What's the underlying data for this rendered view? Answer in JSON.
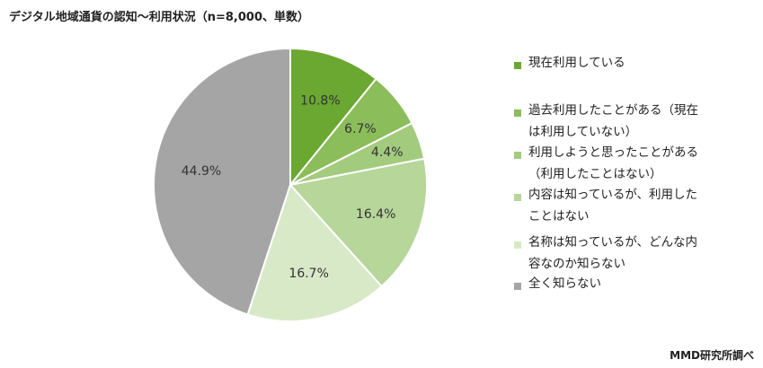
{
  "title": "デジタル地域通貨の認知～利用状況（n=8,000、単数）",
  "source": "MMD研究所調べ",
  "chart_data": {
    "type": "pie",
    "start_angle_deg": 0,
    "direction": "clockwise",
    "legend_position": "right",
    "slices": [
      {
        "label": "現在利用している",
        "value": 10.8,
        "display": "10.8%",
        "color": "#6aa832"
      },
      {
        "label": "過去利用したことがある（現在は利用していない）",
        "value": 6.7,
        "display": "6.7%",
        "color": "#8bbd5b"
      },
      {
        "label": "利用しようと思ったことがある（利用したことはない）",
        "value": 4.4,
        "display": "4.4%",
        "color": "#a3cb7e"
      },
      {
        "label": "内容は知っているが、利用したことはない",
        "value": 16.4,
        "display": "16.4%",
        "color": "#b6d69a"
      },
      {
        "label": "名称は知っているが、どんな内容なのか知らない",
        "value": 16.7,
        "display": "16.7%",
        "color": "#d8e9c8"
      },
      {
        "label": "全く知らない",
        "value": 44.9,
        "display": "44.9%",
        "color": "#a5a5a5"
      }
    ],
    "legend_lines": [
      "現在利用している",
      "過去利用したことがある（現在\nは利用していない）",
      "利用しようと思ったことがある\n（利用したことはない）",
      "内容は知っているが、利用した\nことはない",
      "名称は知っているが、どんな内\n容なのか知らない",
      "全く知らない"
    ]
  }
}
